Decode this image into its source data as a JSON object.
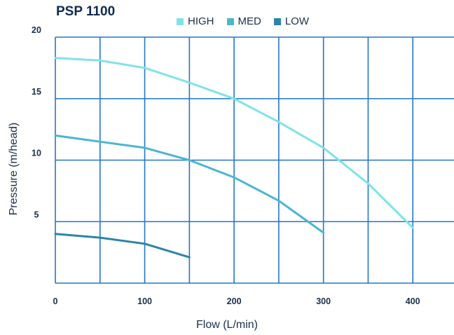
{
  "chart_data": {
    "type": "line",
    "title": "PSP 1100",
    "xlabel": "Flow (L/min)",
    "ylabel": "Pressure (m/head)",
    "xlim": [
      0,
      450
    ],
    "ylim": [
      0,
      20
    ],
    "x_ticks": [
      0,
      100,
      200,
      300,
      400
    ],
    "x_tick_labels": [
      "0",
      "100",
      "200",
      "300",
      "400"
    ],
    "y_ticks": [
      5,
      10,
      15,
      20
    ],
    "y_tick_labels": [
      "5",
      "10",
      "15",
      "20"
    ],
    "x_grid": [
      0,
      50,
      100,
      150,
      200,
      250,
      300,
      350,
      400,
      450
    ],
    "y_grid": [
      0,
      5,
      10,
      15,
      20
    ],
    "grid": true,
    "legend_position": "top",
    "series": [
      {
        "name": "HIGH",
        "color": "#7fe3e8",
        "points": [
          [
            0,
            18.3
          ],
          [
            50,
            18.1
          ],
          [
            100,
            17.5
          ],
          [
            150,
            16.3
          ],
          [
            200,
            15.0
          ],
          [
            250,
            13.1
          ],
          [
            300,
            11.0
          ],
          [
            350,
            8.1
          ],
          [
            400,
            4.5
          ]
        ]
      },
      {
        "name": "MED",
        "color": "#4bb5d2",
        "points": [
          [
            0,
            12.0
          ],
          [
            50,
            11.5
          ],
          [
            100,
            11.0
          ],
          [
            150,
            10.0
          ],
          [
            200,
            8.6
          ],
          [
            250,
            6.7
          ],
          [
            300,
            4.1
          ]
        ]
      },
      {
        "name": "LOW",
        "color": "#2c84ab",
        "points": [
          [
            0,
            4.0
          ],
          [
            50,
            3.7
          ],
          [
            100,
            3.2
          ],
          [
            150,
            2.1
          ]
        ]
      }
    ]
  }
}
